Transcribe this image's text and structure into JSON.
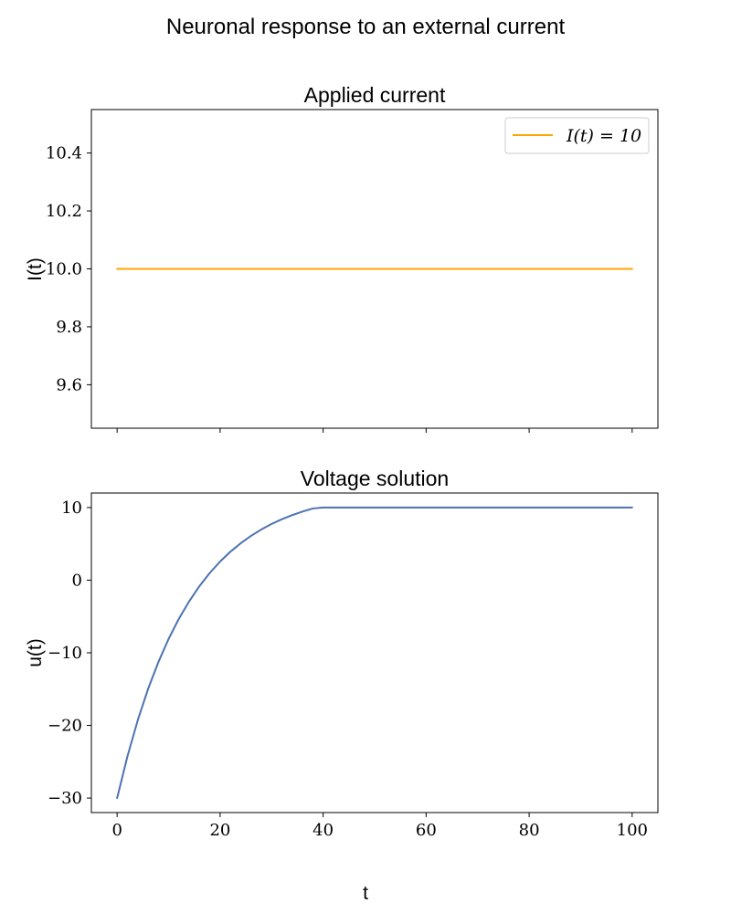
{
  "figure": {
    "suptitle": "Neuronal response to an external current",
    "xlabel": "t"
  },
  "chart_data": [
    {
      "type": "line",
      "title": "Applied current",
      "xlabel": "",
      "ylabel": "I(t)",
      "xlim": [
        -5,
        105
      ],
      "ylim": [
        9.45,
        10.55
      ],
      "xticks": [
        0,
        20,
        40,
        60,
        80,
        100
      ],
      "xtick_labels_visible": false,
      "yticks": [
        9.6,
        9.8,
        10.0,
        10.2,
        10.4
      ],
      "ytick_labels": [
        "9.6",
        "9.8",
        "10.0",
        "10.2",
        "10.4"
      ],
      "grid": false,
      "legend": {
        "placement": "top-right"
      },
      "series": [
        {
          "name": "I(t) = 10",
          "color": "#ffa500",
          "x": [
            0,
            100
          ],
          "y": [
            10,
            10
          ]
        }
      ]
    },
    {
      "type": "line",
      "title": "Voltage solution",
      "xlabel": "t",
      "ylabel": "u(t)",
      "xlim": [
        -5,
        105
      ],
      "ylim": [
        -32,
        12
      ],
      "xticks": [
        0,
        20,
        40,
        60,
        80,
        100
      ],
      "xtick_labels": [
        "0",
        "20",
        "40",
        "60",
        "80",
        "100"
      ],
      "yticks": [
        -30,
        -20,
        -10,
        0,
        10
      ],
      "ytick_labels": [
        "−30",
        "−20",
        "−10",
        "0",
        "10"
      ],
      "grid": false,
      "series": [
        {
          "color": "#4c72b0",
          "x": [
            0,
            2,
            4,
            6,
            8,
            10,
            12,
            14,
            16,
            18,
            20,
            22,
            24,
            26,
            28,
            30,
            32,
            34,
            36,
            38,
            40,
            42,
            44,
            46,
            48,
            50,
            55,
            60,
            65,
            70,
            75,
            80,
            85,
            90,
            95,
            100
          ],
          "y": [
            -30.0,
            -24.27,
            -19.3,
            -15.0,
            -11.3,
            -8.08,
            -5.3,
            -2.9,
            -0.8,
            1.0,
            2.57,
            3.92,
            5.09,
            6.1,
            6.98,
            7.74,
            8.39,
            8.96,
            9.45,
            9.87,
            10.0,
            10.0,
            10.0,
            10.0,
            10.0,
            10.0,
            10.0,
            10.0,
            10.0,
            10.0,
            10.0,
            10.0,
            10.0,
            10.0,
            10.0,
            10.0
          ]
        }
      ]
    }
  ]
}
